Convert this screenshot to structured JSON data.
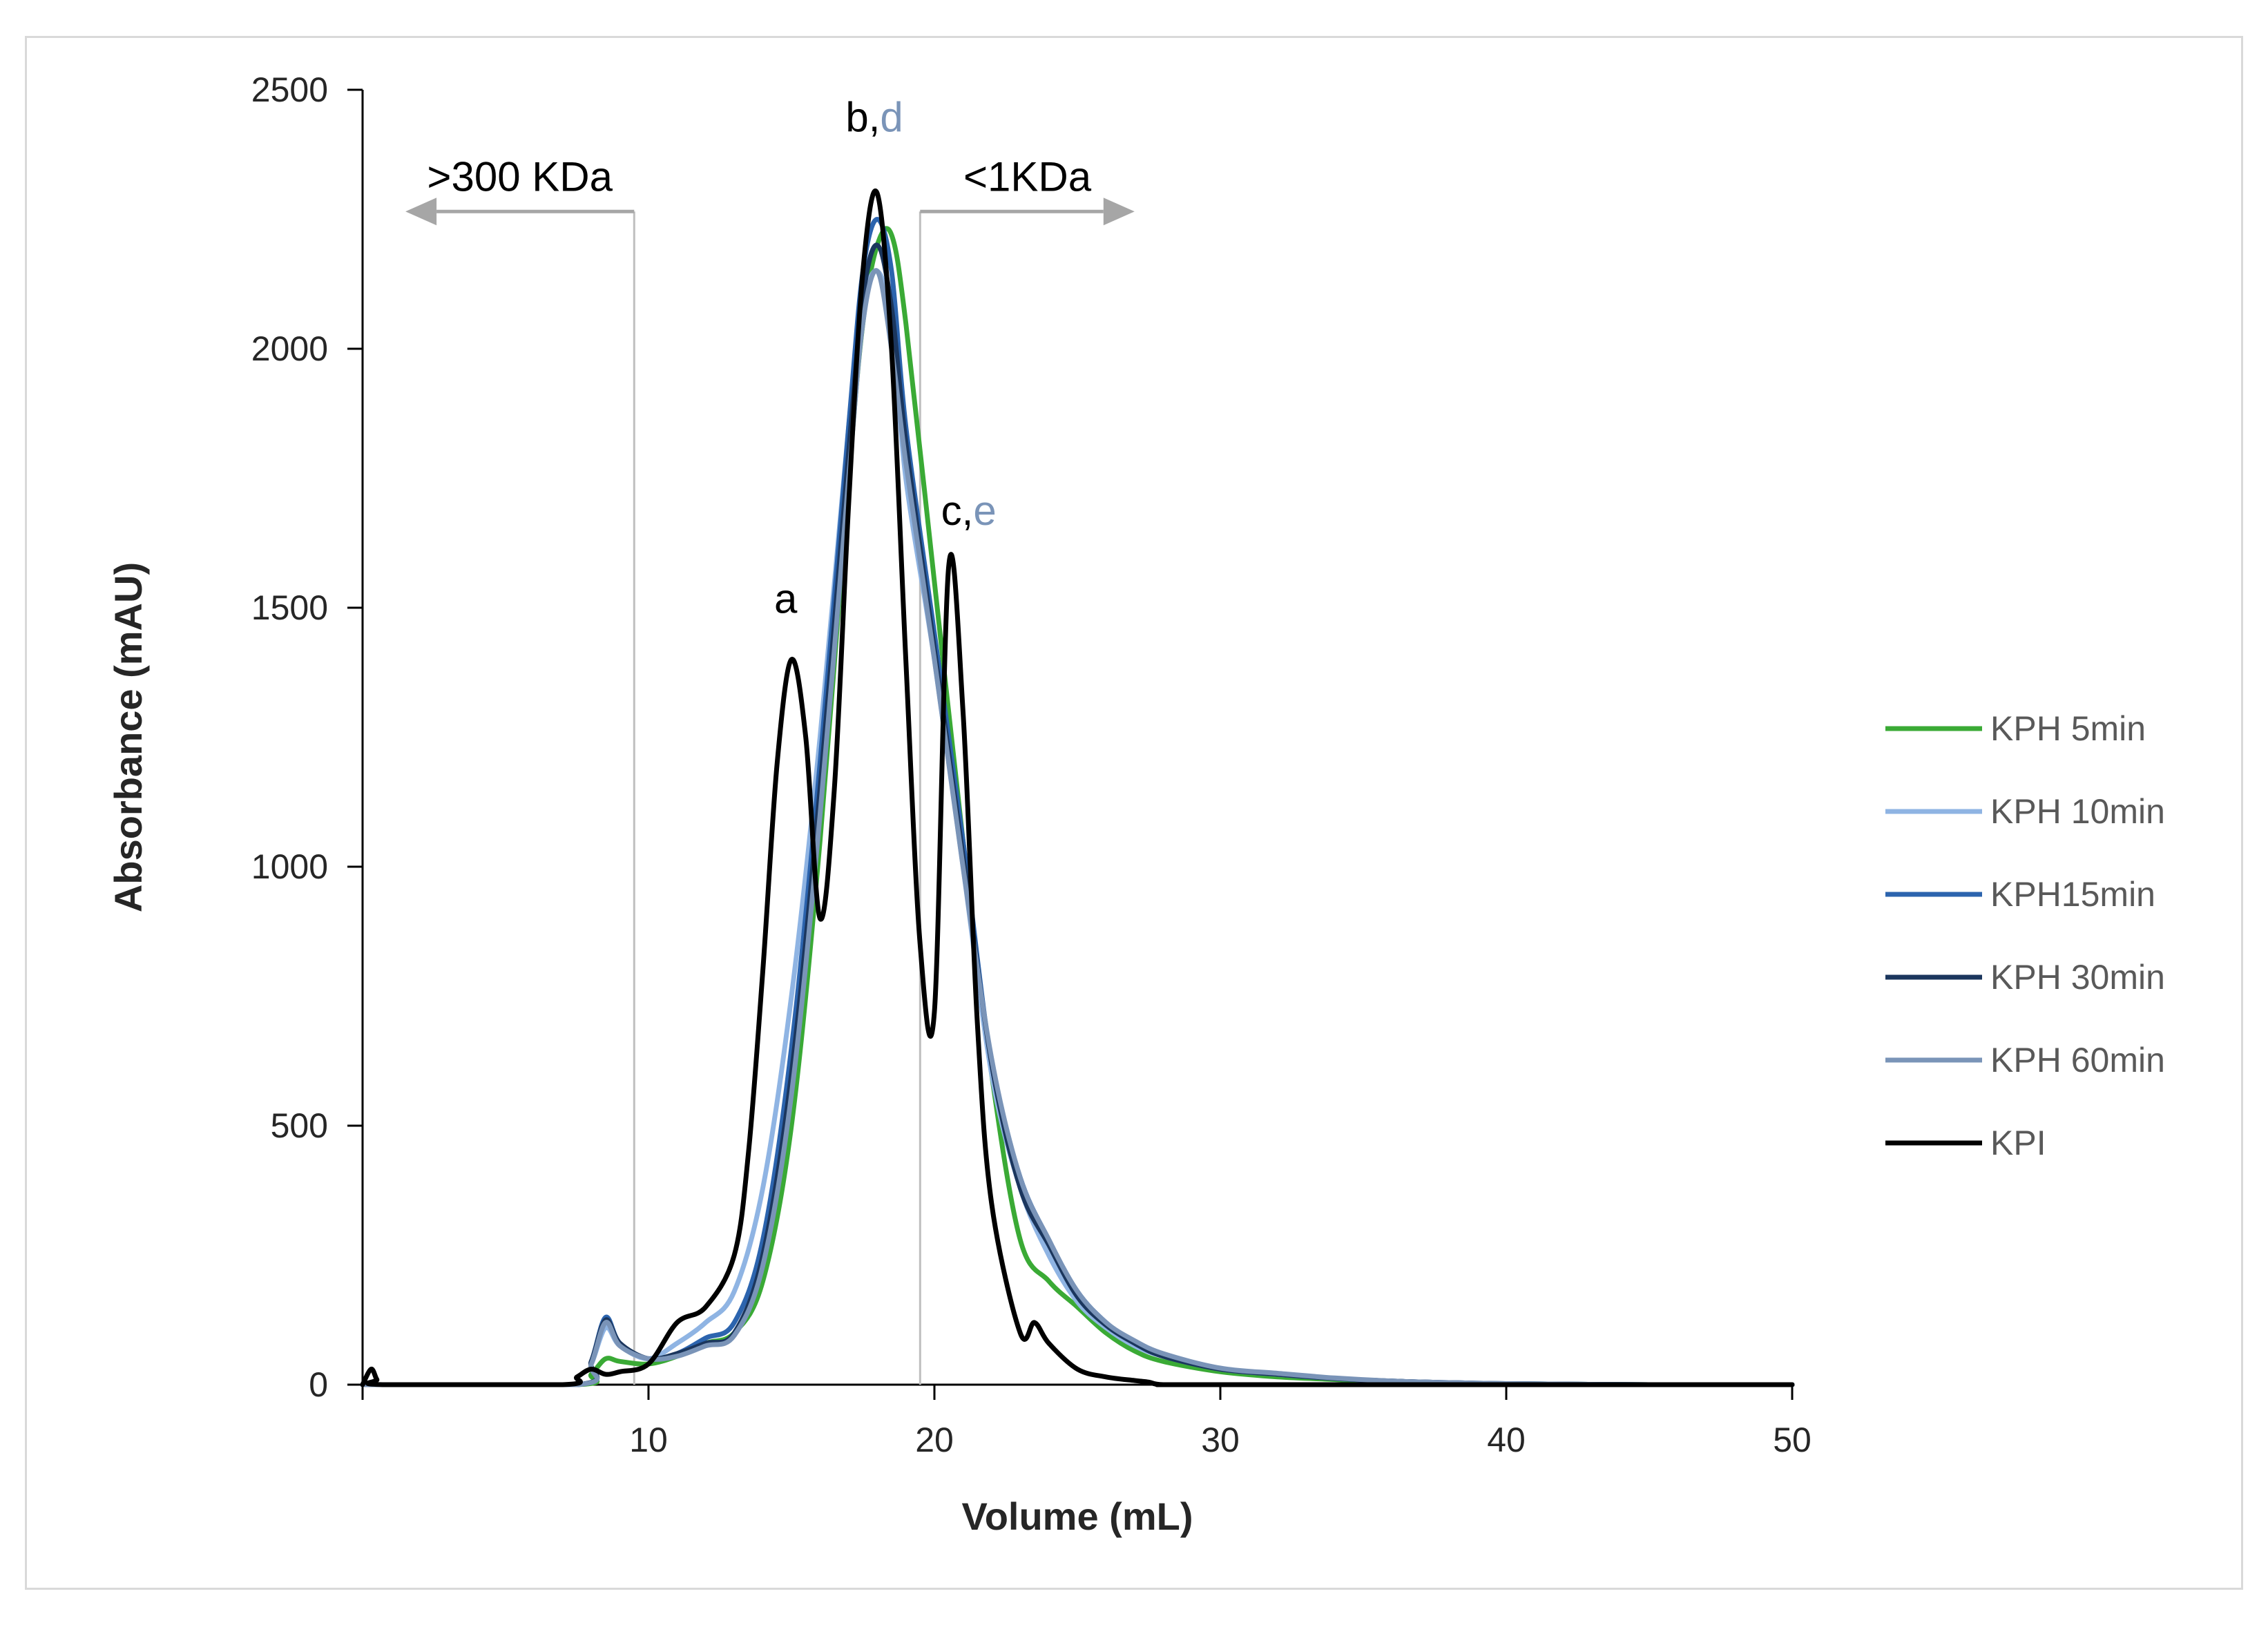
{
  "chart_data": {
    "type": "line",
    "title": "",
    "xlabel": "Volume (mL)",
    "ylabel": "Absorbance (mAU)",
    "xlim": [
      0,
      50
    ],
    "ylim": [
      0,
      2500
    ],
    "xticks": [
      10,
      20,
      30,
      40,
      50
    ],
    "yticks": [
      0,
      500,
      1000,
      1500,
      2000,
      2500
    ],
    "grid": false,
    "legend_position": "right",
    "annotations": [
      {
        "text": ">300 KDa",
        "arrow_direction": "left",
        "x_from": 9.5,
        "x_to": 1.5,
        "y": 2265
      },
      {
        "text": "<1KDa",
        "arrow_direction": "right",
        "x_from": 19.5,
        "x_to": 27,
        "y": 2265
      },
      {
        "text": "a",
        "x": 14.8,
        "y": 1490,
        "color": "#000000"
      },
      {
        "parts": [
          {
            "text": "b,",
            "color": "#000000"
          },
          {
            "text": "d",
            "color": "#7a94b8"
          }
        ],
        "x": 17.9,
        "y": 2420
      },
      {
        "parts": [
          {
            "text": "c,",
            "color": "#000000"
          },
          {
            "text": "e",
            "color": "#7a94b8"
          }
        ],
        "x": 21.2,
        "y": 1660
      }
    ],
    "vertical_markers": [
      9.5,
      19.5
    ],
    "series": [
      {
        "name": "KPH 5min",
        "color": "#3aaa35",
        "x": [
          0,
          7.5,
          8,
          8.5,
          9,
          10,
          11,
          12,
          13,
          14,
          15,
          16,
          17,
          17.5,
          18,
          18.5,
          19,
          20,
          21,
          22,
          23,
          24,
          25,
          26,
          27,
          28,
          30,
          32,
          34,
          36,
          38,
          40,
          45,
          50
        ],
        "y": [
          0,
          0,
          20,
          50,
          45,
          40,
          55,
          80,
          100,
          200,
          500,
          1050,
          1750,
          2050,
          2200,
          2220,
          2050,
          1550,
          1050,
          600,
          280,
          200,
          150,
          100,
          65,
          45,
          25,
          15,
          10,
          5,
          3,
          2,
          0,
          0
        ]
      },
      {
        "name": "KPH 10min",
        "color": "#8fb4e3",
        "x": [
          0,
          7.5,
          8,
          8.5,
          9,
          10,
          11,
          12,
          13,
          14,
          15,
          16,
          17,
          17.5,
          18,
          18.5,
          19,
          20,
          21,
          22,
          23,
          24,
          25,
          26,
          27,
          28,
          30,
          32,
          34,
          36,
          38,
          40,
          45,
          50
        ],
        "y": [
          0,
          0,
          40,
          110,
          75,
          50,
          80,
          120,
          180,
          380,
          750,
          1250,
          1850,
          2080,
          2150,
          2050,
          1750,
          1400,
          1000,
          600,
          380,
          250,
          160,
          110,
          75,
          55,
          30,
          20,
          12,
          7,
          4,
          2,
          0,
          0
        ]
      },
      {
        "name": "KPH15min",
        "color": "#2c64ae",
        "x": [
          0,
          7.5,
          8,
          8.5,
          9,
          10,
          11,
          12,
          13,
          14,
          15,
          16,
          17,
          17.5,
          18,
          18.5,
          19,
          20,
          21,
          22,
          23,
          24,
          25,
          26,
          27,
          28,
          30,
          32,
          34,
          36,
          38,
          40,
          45,
          50
        ],
        "y": [
          0,
          0,
          45,
          130,
          80,
          50,
          60,
          90,
          120,
          280,
          650,
          1200,
          1850,
          2150,
          2250,
          2150,
          1850,
          1450,
          1050,
          620,
          400,
          280,
          180,
          120,
          80,
          55,
          30,
          20,
          12,
          7,
          4,
          2,
          0,
          0
        ]
      },
      {
        "name": "KPH 30min",
        "color": "#1b365d",
        "x": [
          0,
          7.5,
          8,
          8.5,
          9,
          10,
          11,
          12,
          13,
          14,
          15,
          16,
          17,
          17.5,
          18,
          18.5,
          19,
          20,
          21,
          22,
          23,
          24,
          25,
          26,
          27,
          28,
          30,
          32,
          34,
          36,
          38,
          40,
          45,
          50
        ],
        "y": [
          0,
          0,
          45,
          125,
          80,
          50,
          60,
          80,
          100,
          250,
          600,
          1150,
          1800,
          2100,
          2200,
          2080,
          1820,
          1420,
          1020,
          620,
          380,
          270,
          170,
          115,
          80,
          55,
          30,
          20,
          12,
          7,
          4,
          2,
          0,
          0
        ]
      },
      {
        "name": "KPH 60min",
        "color": "#7a94b8",
        "x": [
          0,
          7.5,
          8,
          8.5,
          9,
          10,
          11,
          12,
          13,
          14,
          15,
          16,
          17,
          17.5,
          18,
          18.5,
          19,
          20,
          21,
          22,
          23,
          24,
          25,
          26,
          27,
          28,
          30,
          32,
          34,
          36,
          38,
          40,
          45,
          50
        ],
        "y": [
          0,
          0,
          40,
          120,
          75,
          50,
          55,
          75,
          95,
          230,
          560,
          1100,
          1750,
          2050,
          2150,
          2000,
          1780,
          1400,
          1000,
          630,
          400,
          280,
          180,
          120,
          85,
          60,
          32,
          22,
          13,
          7,
          4,
          2,
          0,
          0
        ]
      },
      {
        "name": "KPI",
        "color": "#000000",
        "x": [
          0,
          0.3,
          0.5,
          0.7,
          7,
          7.5,
          8,
          8.5,
          9,
          10,
          11,
          12,
          13,
          13.5,
          14,
          14.5,
          15,
          15.5,
          16,
          16.5,
          17,
          17.5,
          18,
          18.5,
          19,
          19.5,
          20,
          20.5,
          21,
          21.5,
          22,
          23,
          23.5,
          24,
          25,
          26,
          27,
          27.5,
          28,
          30,
          50
        ],
        "y": [
          0,
          30,
          10,
          0,
          0,
          15,
          30,
          20,
          25,
          40,
          120,
          150,
          250,
          450,
          800,
          1200,
          1400,
          1250,
          900,
          1150,
          1700,
          2150,
          2300,
          2000,
          1400,
          850,
          720,
          1580,
          1300,
          700,
          350,
          100,
          120,
          80,
          30,
          15,
          8,
          5,
          0,
          0,
          0
        ]
      }
    ]
  }
}
